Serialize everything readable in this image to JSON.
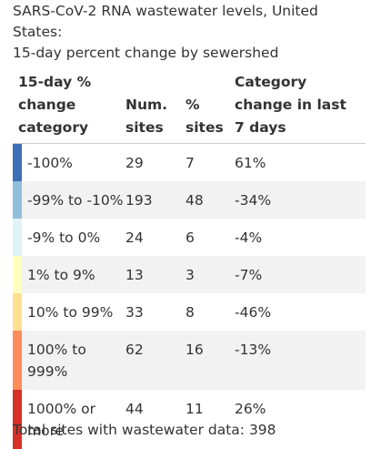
{
  "title_lines": [
    "SARS-CoV-2 RNA wastewater levels, United",
    "States:",
    "15-day percent change by sewershed"
  ],
  "chart_data": {
    "type": "table",
    "header": {
      "category": [
        "15-day %",
        "change",
        "category"
      ],
      "num_sites": [
        "Num.",
        "sites"
      ],
      "pct_sites": [
        "%",
        "sites"
      ],
      "change7": [
        "Category",
        "change in last",
        "7 days"
      ]
    },
    "rows": [
      {
        "category": [
          "-100%"
        ],
        "num_sites": "29",
        "pct_sites": "7",
        "change7": "61%",
        "color": "#3d6fb6"
      },
      {
        "category": [
          "-99% to -10%"
        ],
        "num_sites": "193",
        "pct_sites": "48",
        "change7": "-34%",
        "color": "#91bfdb"
      },
      {
        "category": [
          "-9% to 0%"
        ],
        "num_sites": "24",
        "pct_sites": "6",
        "change7": "-4%",
        "color": "#e0f3f8"
      },
      {
        "category": [
          "1% to 9%"
        ],
        "num_sites": "13",
        "pct_sites": "3",
        "change7": "-7%",
        "color": "#ffffbf"
      },
      {
        "category": [
          "10% to 99%"
        ],
        "num_sites": "33",
        "pct_sites": "8",
        "change7": "-46%",
        "color": "#fee090"
      },
      {
        "category": [
          "100% to",
          "999%"
        ],
        "num_sites": "62",
        "pct_sites": "16",
        "change7": "-13%",
        "color": "#fc8d59"
      },
      {
        "category": [
          "1000% or",
          "more"
        ],
        "num_sites": "44",
        "pct_sites": "11",
        "change7": "26%",
        "color": "#d73027"
      }
    ]
  },
  "footer_text": "Total sites with wastewater data: 398"
}
